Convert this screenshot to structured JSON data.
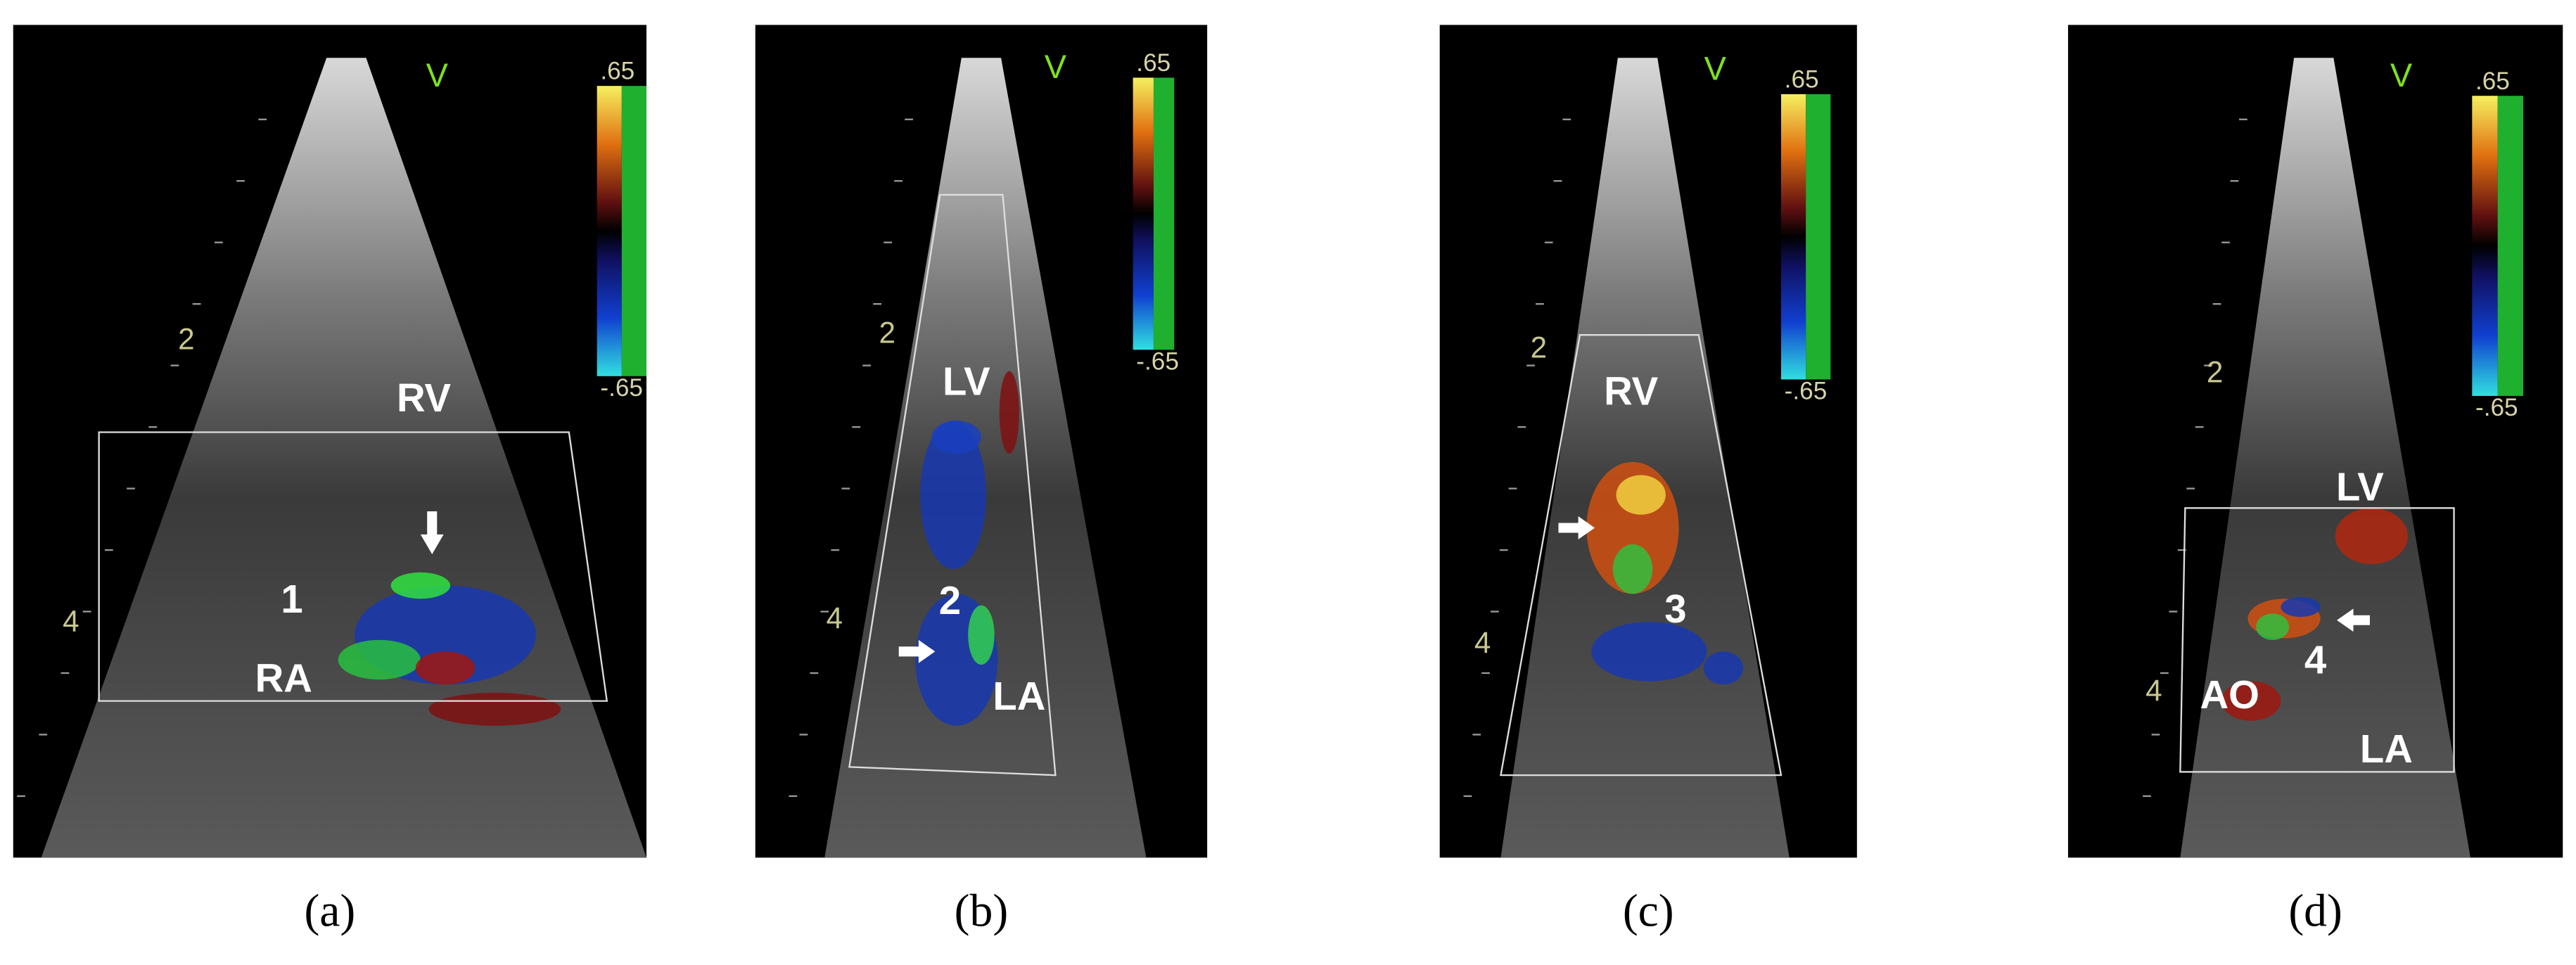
{
  "panels": [
    {
      "caption": "(a)",
      "scale_max": ".65",
      "scale_min": "-.65",
      "mode": "V",
      "depth_marks": [
        "2",
        "4"
      ],
      "labels": [
        "RV",
        "1",
        "RA"
      ]
    },
    {
      "caption": "(b)",
      "scale_max": ".65",
      "scale_min": "-.65",
      "mode": "V",
      "depth_marks": [
        "2",
        "4"
      ],
      "labels": [
        "LV",
        "2",
        "LA"
      ]
    },
    {
      "caption": "(c)",
      "scale_max": ".65",
      "scale_min": "-.65",
      "mode": "V",
      "depth_marks": [
        "2",
        "4"
      ],
      "labels": [
        "RV",
        "3"
      ]
    },
    {
      "caption": "(d)",
      "scale_max": ".65",
      "scale_min": "-.65",
      "mode": "V",
      "depth_marks": [
        "2",
        "4"
      ],
      "labels": [
        "LV",
        "AO",
        "4",
        "LA"
      ]
    }
  ]
}
